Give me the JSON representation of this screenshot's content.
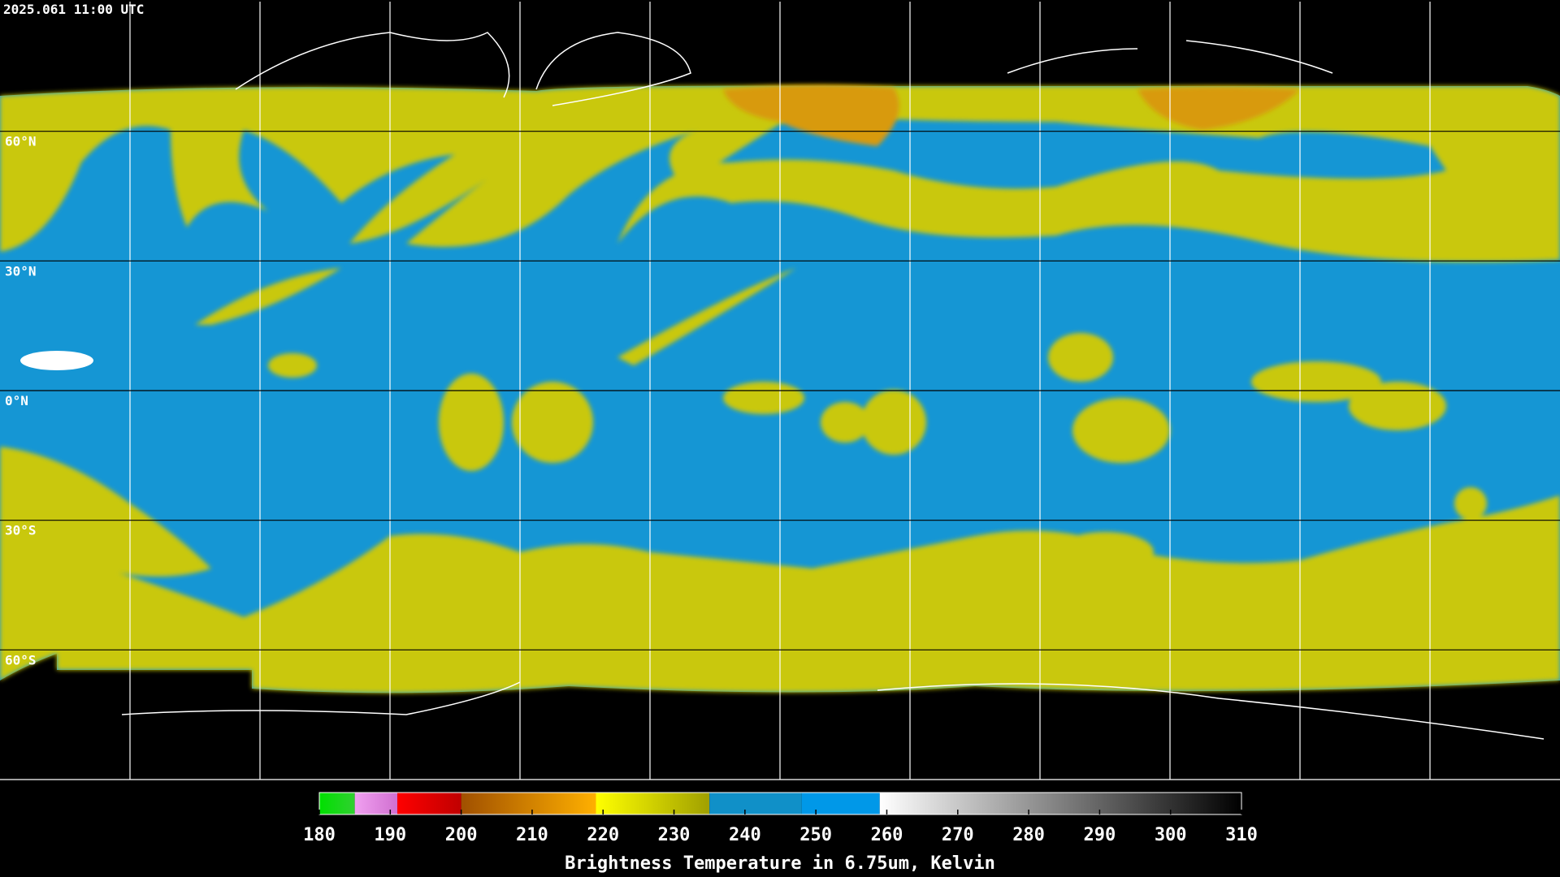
{
  "header": {
    "title": "2025.061 11:00 UTC"
  },
  "latitudes": [
    {
      "value": 60,
      "label": "60°N"
    },
    {
      "value": 30,
      "label": "30°N"
    },
    {
      "value": 0,
      "label": "0°N"
    },
    {
      "value": -30,
      "label": "30°S"
    },
    {
      "value": -60,
      "label": "60°S"
    }
  ],
  "colorbar": {
    "label": "Brightness Temperature in 6.75um, Kelvin",
    "lim": [
      180,
      310
    ],
    "ticks": [
      180,
      190,
      200,
      210,
      220,
      230,
      240,
      250,
      260,
      270,
      280,
      290,
      300,
      310
    ],
    "segments": [
      {
        "from": 180,
        "to": 185,
        "colors": [
          "#00e000",
          "#30d030"
        ]
      },
      {
        "from": 185,
        "to": 191,
        "colors": [
          "#f0a0f0",
          "#d070d0"
        ]
      },
      {
        "from": 191,
        "to": 200,
        "colors": [
          "#ff0000",
          "#c00000"
        ]
      },
      {
        "from": 200,
        "to": 219,
        "colors": [
          "#a05000",
          "#ffb000"
        ]
      },
      {
        "from": 219,
        "to": 235,
        "colors": [
          "#ffff00",
          "#a0a000"
        ]
      },
      {
        "from": 235,
        "to": 248,
        "colors": [
          "#1090c8",
          "#1090c8"
        ]
      },
      {
        "from": 248,
        "to": 259,
        "colors": [
          "#0098e8",
          "#0098e8"
        ]
      },
      {
        "from": 259,
        "to": 310,
        "colors": [
          "#ffffff",
          "#000000"
        ]
      }
    ]
  }
}
